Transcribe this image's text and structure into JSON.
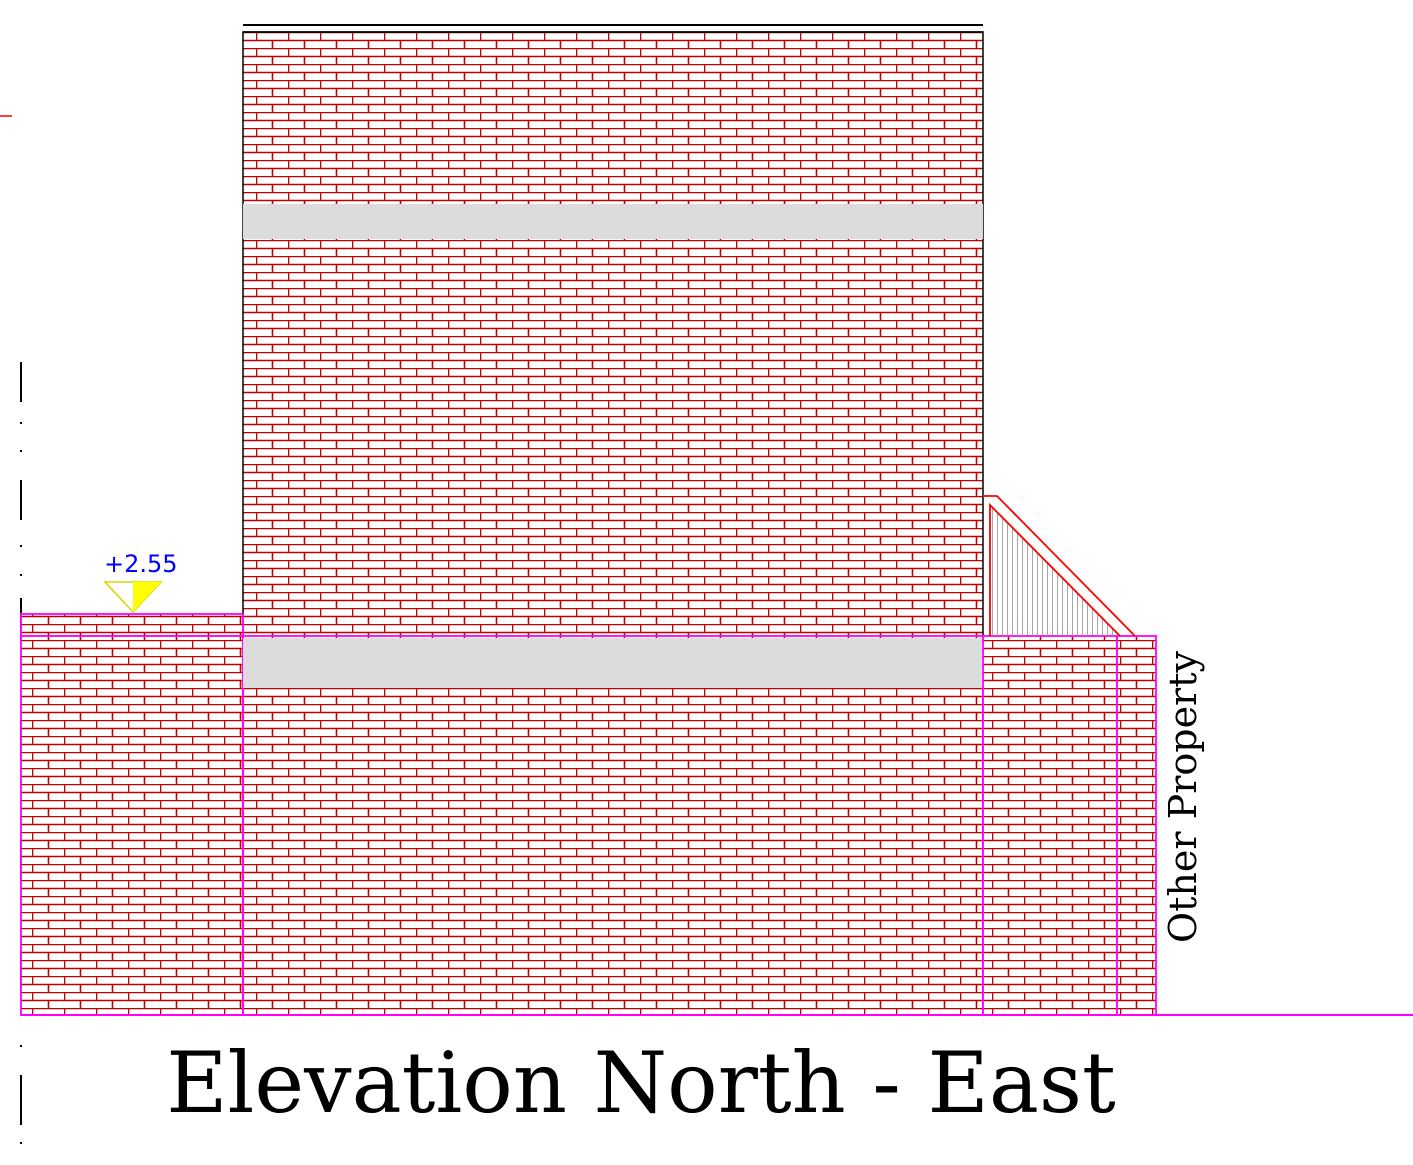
{
  "drawing": {
    "title": "Elevation North - East",
    "side_label": "Other Property",
    "level_marker": {
      "text": "+2.55"
    },
    "colors": {
      "brick": "#c00000",
      "wall_outline": "#ff00ff",
      "cornice": "#dcdcdc",
      "level_marker_text": "#0000ff",
      "level_marker_symbol": "#ffff00",
      "roof_line": "#ff0000",
      "ground_line": "#ff00ff"
    }
  }
}
